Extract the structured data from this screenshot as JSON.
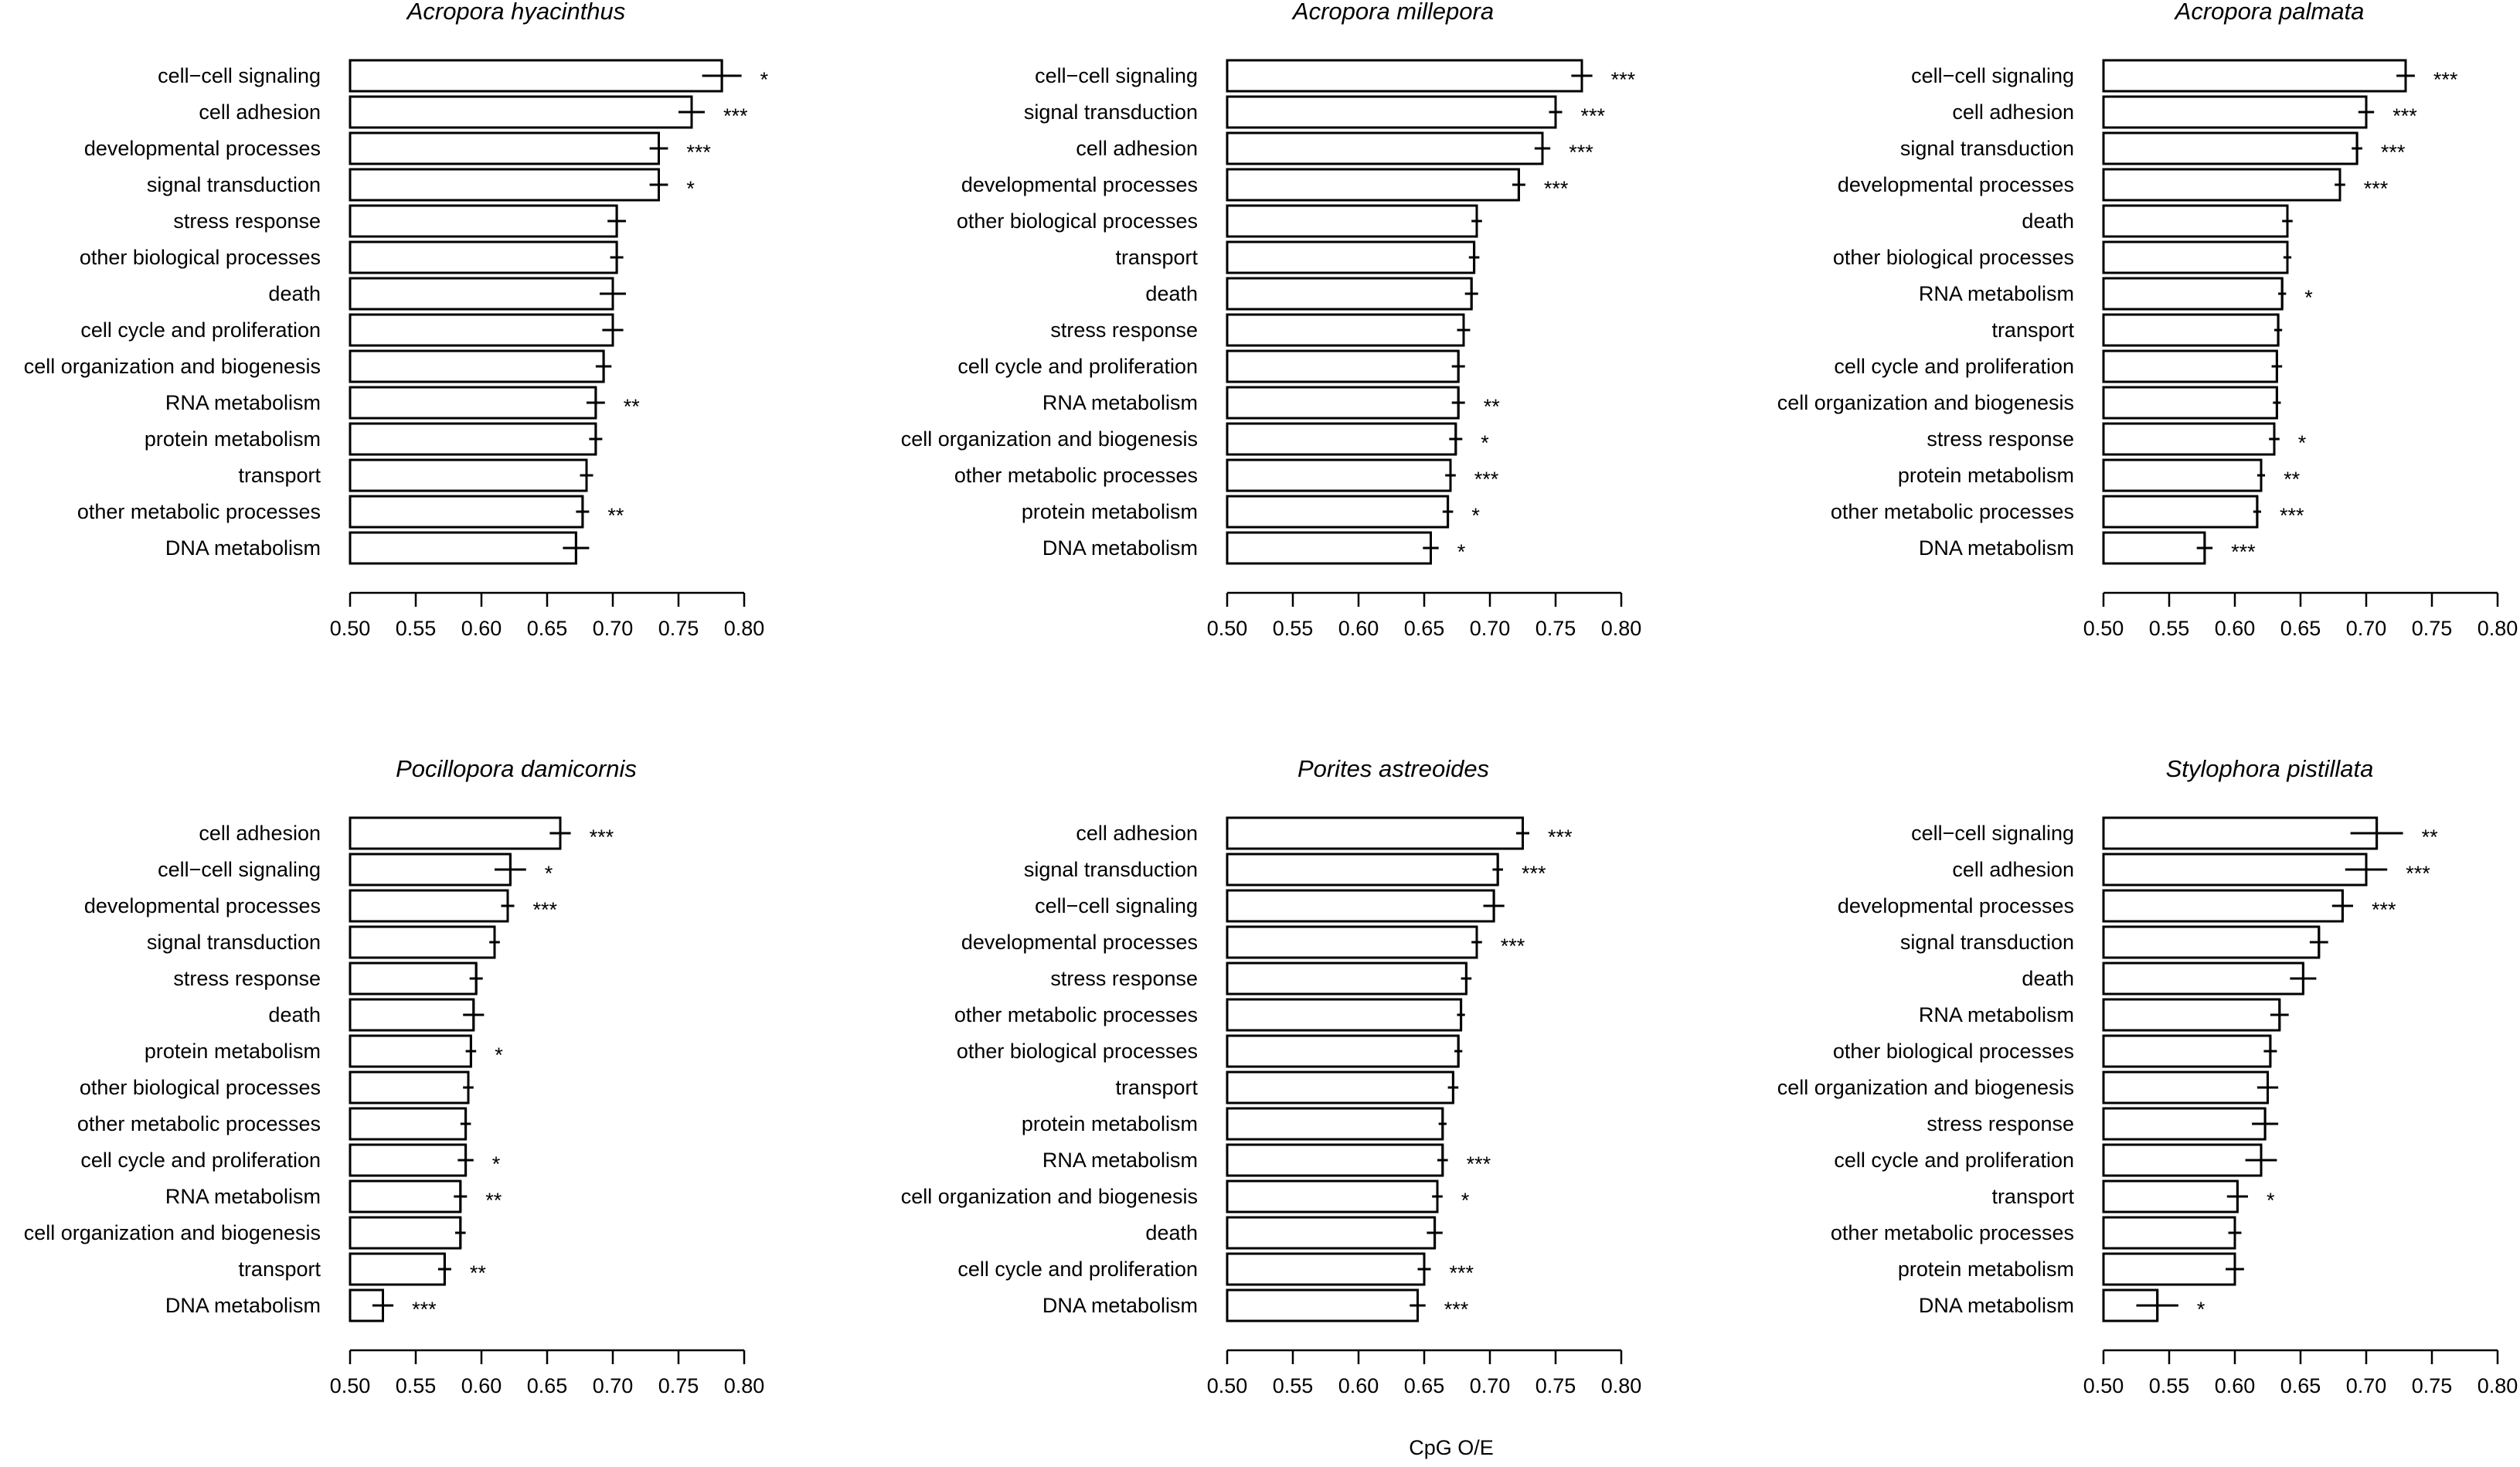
{
  "figure": {
    "xlabel": "CpG O/E"
  },
  "chart_data": [
    {
      "type": "bar",
      "orientation": "horizontal",
      "title": "Acropora hyacinthus",
      "xlim": [
        0.5,
        0.8
      ],
      "xticks": [
        "0.50",
        "0.55",
        "0.60",
        "0.65",
        "0.70",
        "0.75",
        "0.80"
      ],
      "bars": [
        {
          "label": "cell−cell signaling",
          "value": 0.783,
          "err": 0.015,
          "sig": "*"
        },
        {
          "label": "cell adhesion",
          "value": 0.76,
          "err": 0.01,
          "sig": "***"
        },
        {
          "label": "developmental processes",
          "value": 0.735,
          "err": 0.007,
          "sig": "***"
        },
        {
          "label": "signal transduction",
          "value": 0.735,
          "err": 0.007,
          "sig": "*"
        },
        {
          "label": "stress response",
          "value": 0.703,
          "err": 0.007,
          "sig": ""
        },
        {
          "label": "other biological processes",
          "value": 0.703,
          "err": 0.005,
          "sig": ""
        },
        {
          "label": "death",
          "value": 0.7,
          "err": 0.01,
          "sig": ""
        },
        {
          "label": "cell cycle and proliferation",
          "value": 0.7,
          "err": 0.008,
          "sig": ""
        },
        {
          "label": "cell organization and biogenesis",
          "value": 0.693,
          "err": 0.006,
          "sig": ""
        },
        {
          "label": "RNA metabolism",
          "value": 0.687,
          "err": 0.007,
          "sig": "**"
        },
        {
          "label": "protein metabolism",
          "value": 0.687,
          "err": 0.005,
          "sig": ""
        },
        {
          "label": "transport",
          "value": 0.68,
          "err": 0.005,
          "sig": ""
        },
        {
          "label": "other metabolic processes",
          "value": 0.677,
          "err": 0.005,
          "sig": "**"
        },
        {
          "label": "DNA metabolism",
          "value": 0.672,
          "err": 0.01,
          "sig": ""
        }
      ]
    },
    {
      "type": "bar",
      "orientation": "horizontal",
      "title": "Acropora millepora",
      "xlim": [
        0.5,
        0.8
      ],
      "xticks": [
        "0.50",
        "0.55",
        "0.60",
        "0.65",
        "0.70",
        "0.75",
        "0.80"
      ],
      "bars": [
        {
          "label": "cell−cell signaling",
          "value": 0.77,
          "err": 0.008,
          "sig": "***"
        },
        {
          "label": "signal transduction",
          "value": 0.75,
          "err": 0.005,
          "sig": "***"
        },
        {
          "label": "cell adhesion",
          "value": 0.74,
          "err": 0.006,
          "sig": "***"
        },
        {
          "label": "developmental processes",
          "value": 0.722,
          "err": 0.005,
          "sig": "***"
        },
        {
          "label": "other biological processes",
          "value": 0.69,
          "err": 0.004,
          "sig": ""
        },
        {
          "label": "transport",
          "value": 0.688,
          "err": 0.004,
          "sig": ""
        },
        {
          "label": "death",
          "value": 0.686,
          "err": 0.005,
          "sig": ""
        },
        {
          "label": "stress response",
          "value": 0.68,
          "err": 0.005,
          "sig": ""
        },
        {
          "label": "cell cycle and proliferation",
          "value": 0.676,
          "err": 0.005,
          "sig": ""
        },
        {
          "label": "RNA metabolism",
          "value": 0.676,
          "err": 0.005,
          "sig": "**"
        },
        {
          "label": "cell organization and biogenesis",
          "value": 0.674,
          "err": 0.005,
          "sig": "*"
        },
        {
          "label": "other metabolic processes",
          "value": 0.67,
          "err": 0.004,
          "sig": "***"
        },
        {
          "label": "protein metabolism",
          "value": 0.668,
          "err": 0.004,
          "sig": "*"
        },
        {
          "label": "DNA metabolism",
          "value": 0.655,
          "err": 0.006,
          "sig": "*"
        }
      ]
    },
    {
      "type": "bar",
      "orientation": "horizontal",
      "title": "Acropora palmata",
      "xlim": [
        0.5,
        0.8
      ],
      "xticks": [
        "0.50",
        "0.55",
        "0.60",
        "0.65",
        "0.70",
        "0.75",
        "0.80"
      ],
      "bars": [
        {
          "label": "cell−cell signaling",
          "value": 0.73,
          "err": 0.007,
          "sig": "***"
        },
        {
          "label": "cell adhesion",
          "value": 0.7,
          "err": 0.006,
          "sig": "***"
        },
        {
          "label": "signal transduction",
          "value": 0.693,
          "err": 0.004,
          "sig": "***"
        },
        {
          "label": "developmental processes",
          "value": 0.68,
          "err": 0.004,
          "sig": "***"
        },
        {
          "label": "death",
          "value": 0.64,
          "err": 0.004,
          "sig": ""
        },
        {
          "label": "other biological processes",
          "value": 0.64,
          "err": 0.003,
          "sig": ""
        },
        {
          "label": "RNA metabolism",
          "value": 0.636,
          "err": 0.003,
          "sig": "*"
        },
        {
          "label": "transport",
          "value": 0.633,
          "err": 0.003,
          "sig": ""
        },
        {
          "label": "cell cycle and proliferation",
          "value": 0.632,
          "err": 0.004,
          "sig": ""
        },
        {
          "label": "cell organization and biogenesis",
          "value": 0.632,
          "err": 0.003,
          "sig": ""
        },
        {
          "label": "stress response",
          "value": 0.63,
          "err": 0.004,
          "sig": "*"
        },
        {
          "label": "protein metabolism",
          "value": 0.62,
          "err": 0.003,
          "sig": "**"
        },
        {
          "label": "other metabolic processes",
          "value": 0.617,
          "err": 0.003,
          "sig": "***"
        },
        {
          "label": "DNA metabolism",
          "value": 0.577,
          "err": 0.006,
          "sig": "***"
        }
      ]
    },
    {
      "type": "bar",
      "orientation": "horizontal",
      "title": "Pocillopora damicornis",
      "xlim": [
        0.5,
        0.8
      ],
      "xticks": [
        "0.50",
        "0.55",
        "0.60",
        "0.65",
        "0.70",
        "0.75",
        "0.80"
      ],
      "bars": [
        {
          "label": "cell adhesion",
          "value": 0.66,
          "err": 0.008,
          "sig": "***"
        },
        {
          "label": "cell−cell signaling",
          "value": 0.622,
          "err": 0.012,
          "sig": "*"
        },
        {
          "label": "developmental processes",
          "value": 0.62,
          "err": 0.005,
          "sig": "***"
        },
        {
          "label": "signal transduction",
          "value": 0.61,
          "err": 0.004,
          "sig": ""
        },
        {
          "label": "stress response",
          "value": 0.596,
          "err": 0.005,
          "sig": ""
        },
        {
          "label": "death",
          "value": 0.594,
          "err": 0.008,
          "sig": ""
        },
        {
          "label": "protein metabolism",
          "value": 0.592,
          "err": 0.004,
          "sig": "*"
        },
        {
          "label": "other biological processes",
          "value": 0.59,
          "err": 0.004,
          "sig": ""
        },
        {
          "label": "other metabolic processes",
          "value": 0.588,
          "err": 0.004,
          "sig": ""
        },
        {
          "label": "cell cycle and proliferation",
          "value": 0.588,
          "err": 0.006,
          "sig": "*"
        },
        {
          "label": "RNA metabolism",
          "value": 0.584,
          "err": 0.005,
          "sig": "**"
        },
        {
          "label": "cell organization and biogenesis",
          "value": 0.584,
          "err": 0.004,
          "sig": ""
        },
        {
          "label": "transport",
          "value": 0.572,
          "err": 0.005,
          "sig": "**"
        },
        {
          "label": "DNA metabolism",
          "value": 0.525,
          "err": 0.008,
          "sig": "***"
        }
      ]
    },
    {
      "type": "bar",
      "orientation": "horizontal",
      "title": "Porites astreoides",
      "xlim": [
        0.5,
        0.8
      ],
      "xticks": [
        "0.50",
        "0.55",
        "0.60",
        "0.65",
        "0.70",
        "0.75",
        "0.80"
      ],
      "bars": [
        {
          "label": "cell adhesion",
          "value": 0.725,
          "err": 0.005,
          "sig": "***"
        },
        {
          "label": "signal transduction",
          "value": 0.706,
          "err": 0.004,
          "sig": "***"
        },
        {
          "label": "cell−cell signaling",
          "value": 0.703,
          "err": 0.008,
          "sig": ""
        },
        {
          "label": "developmental processes",
          "value": 0.69,
          "err": 0.004,
          "sig": "***"
        },
        {
          "label": "stress response",
          "value": 0.682,
          "err": 0.004,
          "sig": ""
        },
        {
          "label": "other metabolic processes",
          "value": 0.678,
          "err": 0.003,
          "sig": ""
        },
        {
          "label": "other biological processes",
          "value": 0.676,
          "err": 0.003,
          "sig": ""
        },
        {
          "label": "transport",
          "value": 0.672,
          "err": 0.004,
          "sig": ""
        },
        {
          "label": "protein metabolism",
          "value": 0.664,
          "err": 0.003,
          "sig": ""
        },
        {
          "label": "RNA metabolism",
          "value": 0.664,
          "err": 0.004,
          "sig": "***"
        },
        {
          "label": "cell organization and biogenesis",
          "value": 0.66,
          "err": 0.004,
          "sig": "*"
        },
        {
          "label": "death",
          "value": 0.658,
          "err": 0.006,
          "sig": ""
        },
        {
          "label": "cell cycle and proliferation",
          "value": 0.65,
          "err": 0.005,
          "sig": "***"
        },
        {
          "label": "DNA metabolism",
          "value": 0.645,
          "err": 0.006,
          "sig": "***"
        }
      ]
    },
    {
      "type": "bar",
      "orientation": "horizontal",
      "title": "Stylophora pistillata",
      "xlim": [
        0.5,
        0.8
      ],
      "xticks": [
        "0.50",
        "0.55",
        "0.60",
        "0.65",
        "0.70",
        "0.75",
        "0.80"
      ],
      "bars": [
        {
          "label": "cell−cell signaling",
          "value": 0.708,
          "err": 0.02,
          "sig": "**"
        },
        {
          "label": "cell adhesion",
          "value": 0.7,
          "err": 0.016,
          "sig": "***"
        },
        {
          "label": "developmental processes",
          "value": 0.682,
          "err": 0.008,
          "sig": "***"
        },
        {
          "label": "signal transduction",
          "value": 0.664,
          "err": 0.007,
          "sig": ""
        },
        {
          "label": "death",
          "value": 0.652,
          "err": 0.01,
          "sig": ""
        },
        {
          "label": "RNA metabolism",
          "value": 0.634,
          "err": 0.007,
          "sig": ""
        },
        {
          "label": "other biological processes",
          "value": 0.627,
          "err": 0.005,
          "sig": ""
        },
        {
          "label": "cell organization and biogenesis",
          "value": 0.625,
          "err": 0.008,
          "sig": ""
        },
        {
          "label": "stress response",
          "value": 0.623,
          "err": 0.01,
          "sig": ""
        },
        {
          "label": "cell cycle and proliferation",
          "value": 0.62,
          "err": 0.012,
          "sig": ""
        },
        {
          "label": "transport",
          "value": 0.602,
          "err": 0.008,
          "sig": "*"
        },
        {
          "label": "other metabolic processes",
          "value": 0.6,
          "err": 0.005,
          "sig": ""
        },
        {
          "label": "protein metabolism",
          "value": 0.6,
          "err": 0.007,
          "sig": ""
        },
        {
          "label": "DNA metabolism",
          "value": 0.541,
          "err": 0.016,
          "sig": "*"
        }
      ]
    }
  ]
}
